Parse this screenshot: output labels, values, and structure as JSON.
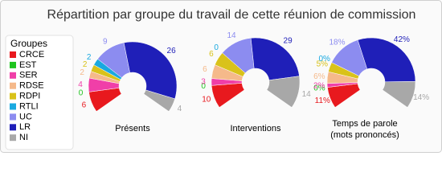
{
  "title": "Répartition par groupe du travail de cette réunion de commission",
  "legend": {
    "title": "Groupes",
    "categories": [
      "CRCE",
      "EST",
      "SER",
      "RDSE",
      "RDPI",
      "RTLI",
      "UC",
      "LR",
      "NI"
    ],
    "colors": [
      "#e8191e",
      "#1fc41f",
      "#f03fa8",
      "#f5b98a",
      "#d9c21a",
      "#1aa9e0",
      "#8c8cf0",
      "#1f1fb8",
      "#a8a8a8"
    ]
  },
  "chart_data": [
    {
      "type": "pie",
      "label": [
        "Présents"
      ],
      "values": [
        6,
        0,
        4,
        2,
        2,
        2,
        9,
        26,
        4
      ]
    },
    {
      "type": "pie",
      "label": [
        "Interventions"
      ],
      "values": [
        10,
        0,
        3,
        6,
        6,
        0,
        14,
        29,
        14
      ]
    },
    {
      "type": "pie",
      "label": [
        "Temps de parole",
        "(mots prononcés)"
      ],
      "values": [
        11,
        0,
        2,
        6,
        5,
        0,
        18,
        42,
        14
      ],
      "value_labels": [
        "11%",
        "0%",
        "2%",
        "6%",
        "5%",
        "0%",
        "18%",
        "42%",
        "14%"
      ]
    }
  ]
}
